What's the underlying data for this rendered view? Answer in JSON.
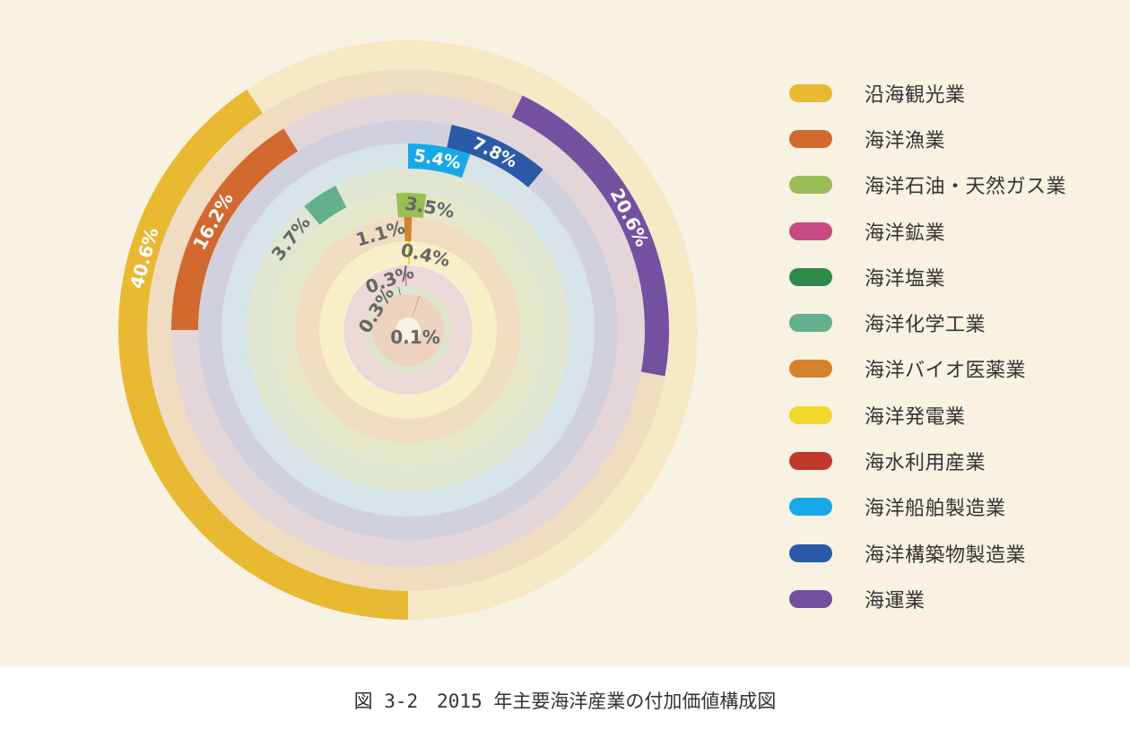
{
  "caption": "図 3-2　2015 年主要海洋産業の付加価値構成図",
  "chart_data": {
    "type": "radial-bar",
    "unit": "%",
    "series": [
      {
        "name": "沿海観光業",
        "value": 40.6,
        "label": "40.6%",
        "color": "#e8b931",
        "track": "#f6e9c6"
      },
      {
        "name": "海洋漁業",
        "value": 16.2,
        "label": "16.2%",
        "color": "#d2692e",
        "track": "#e3d6d8"
      },
      {
        "name": "海洋石油・天然ガス業",
        "value": 3.5,
        "label": "3.5%",
        "color": "#9bbd55",
        "track": "#e5e7cb"
      },
      {
        "name": "海洋鉱業",
        "value": 0.3,
        "label": "0.3%",
        "color": "#c74b82",
        "track": "#ecd8d6"
      },
      {
        "name": "海洋塩業",
        "value": 0.3,
        "label": "0.3%",
        "color": "#2e8b4a",
        "track": "#dde3cc"
      },
      {
        "name": "海洋化学工業",
        "value": 3.7,
        "label": "3.7%",
        "color": "#62b08c",
        "track": "#dfe6d2"
      },
      {
        "name": "海洋バイオ医薬業",
        "value": 1.1,
        "label": "1.1%",
        "color": "#d4832c",
        "track": "#f0ddc1"
      },
      {
        "name": "海洋発電業",
        "value": 0.4,
        "label": "0.4%",
        "color": "#f3d72a",
        "track": "#f8efc8"
      },
      {
        "name": "海水利用産業",
        "value": 0.1,
        "label": "0.1%",
        "color": "#c0392b",
        "track": "#edd3be"
      },
      {
        "name": "海洋船舶製造業",
        "value": 5.4,
        "label": "5.4%",
        "color": "#17a9e6",
        "track": "#d7e3e6"
      },
      {
        "name": "海洋構築物製造業",
        "value": 7.8,
        "label": "7.8%",
        "color": "#2b5aa8",
        "track": "#d1d1de"
      },
      {
        "name": "海運業",
        "value": 20.6,
        "label": "20.6%",
        "color": "#7550a0",
        "track": "#f0dcc1"
      }
    ]
  }
}
